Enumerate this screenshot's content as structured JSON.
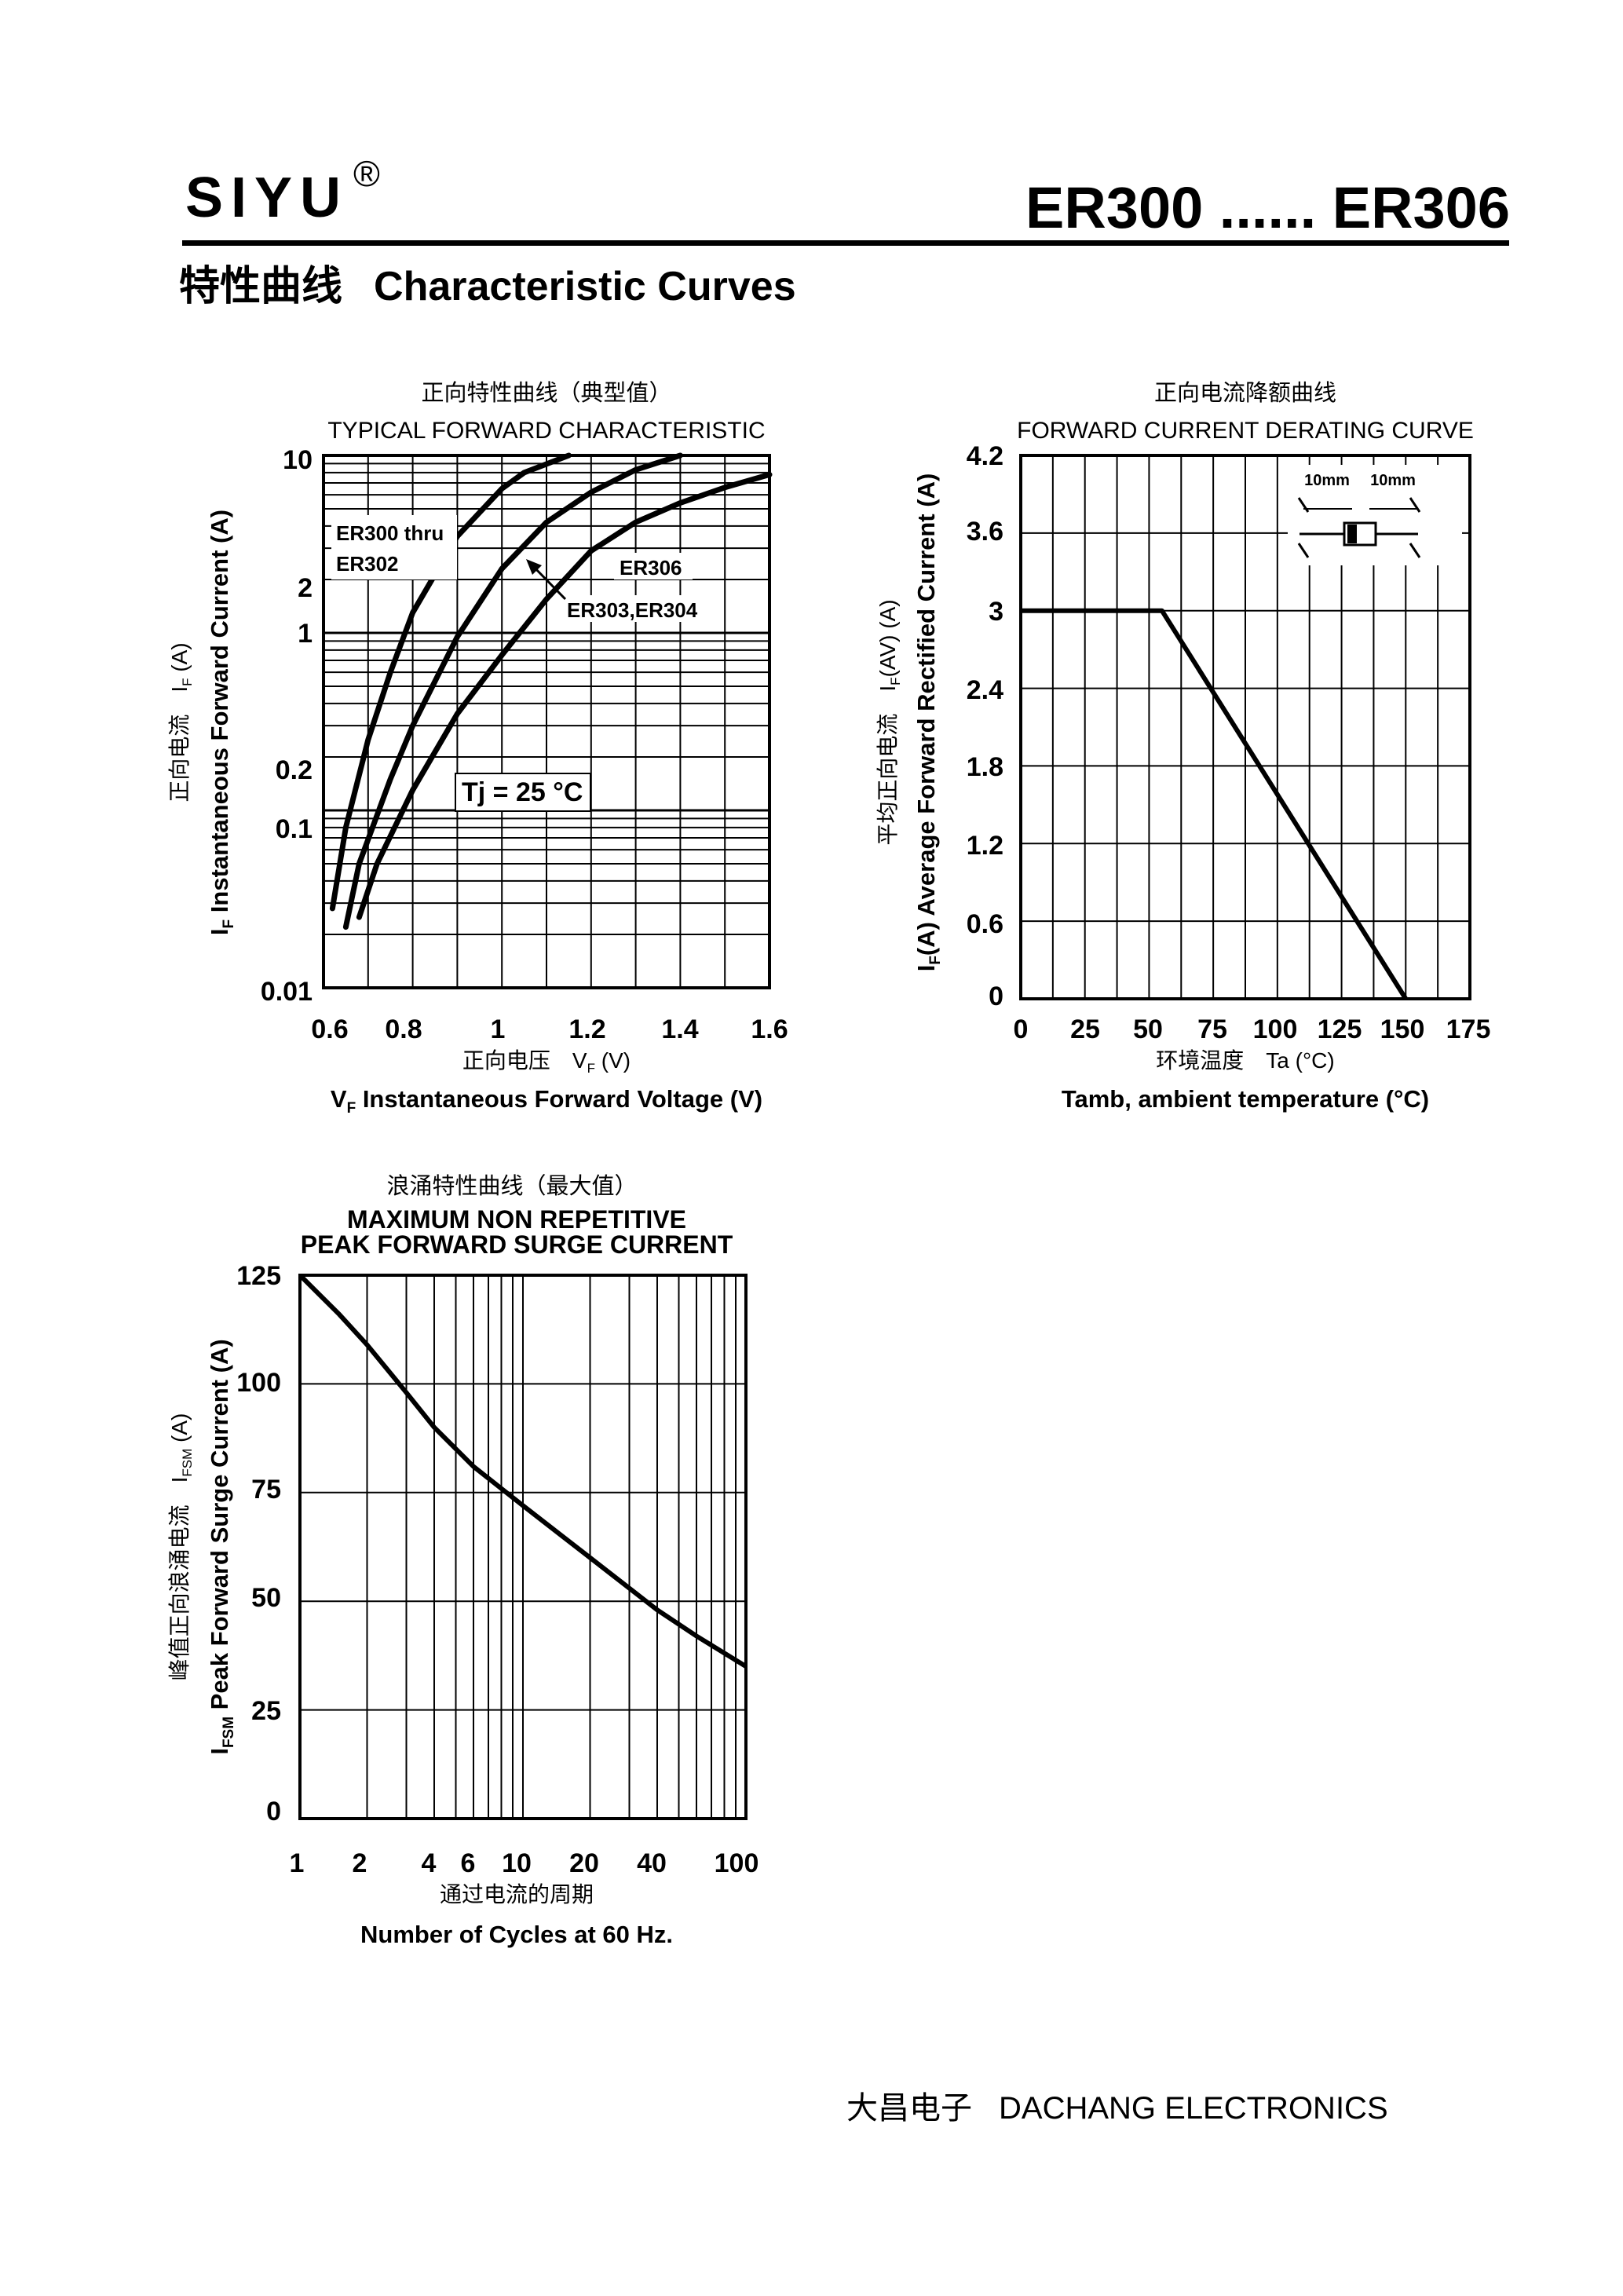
{
  "header": {
    "brand": "SIYU",
    "brand_mark": "®",
    "model_range": "ER300 ...... ER306",
    "section_title_cn": "特性曲线",
    "section_title_en": "Characteristic Curves"
  },
  "footer": {
    "company_cn": "大昌电子",
    "company_en": "DACHANG ELECTRONICS"
  },
  "chart_data": [
    {
      "id": "forward",
      "type": "line",
      "title_cn": "正向特性曲线（典型值）",
      "title": "TYPICAL FORWARD CHARACTERISTIC",
      "xlabel_cn": "正向电压　V_F (V)",
      "xlabel": "V_F Instantaneous Forward Voltage (V)",
      "ylabel_cn": "正向电流　I_F (A)",
      "ylabel": "I_F Instantaneous Forward Current (A)",
      "xscale": "linear",
      "yscale": "log",
      "xlim": [
        0.6,
        1.6
      ],
      "ylim": [
        0.01,
        10
      ],
      "xticks": [
        "0.6",
        "0.8",
        "1",
        "1.2",
        "1.4",
        "1.6"
      ],
      "yticks": [
        "0.01",
        "0.1",
        "0.2",
        "1",
        "2",
        "10"
      ],
      "grid": true,
      "annotation": "Tj = 25 °C",
      "series": [
        {
          "name": "ER300 thru ER302",
          "points": [
            [
              0.62,
              0.028
            ],
            [
              0.65,
              0.08
            ],
            [
              0.7,
              0.25
            ],
            [
              0.75,
              0.6
            ],
            [
              0.8,
              1.3
            ],
            [
              0.9,
              3.5
            ],
            [
              1.0,
              6.5
            ],
            [
              1.05,
              8.0
            ],
            [
              1.15,
              10.0
            ]
          ]
        },
        {
          "name": "ER303,ER304",
          "points": [
            [
              0.65,
              0.022
            ],
            [
              0.68,
              0.05
            ],
            [
              0.75,
              0.15
            ],
            [
              0.8,
              0.3
            ],
            [
              0.9,
              0.95
            ],
            [
              1.0,
              2.3
            ],
            [
              1.1,
              4.2
            ],
            [
              1.2,
              6.2
            ],
            [
              1.3,
              8.3
            ],
            [
              1.4,
              10.0
            ]
          ]
        },
        {
          "name": "ER306",
          "points": [
            [
              0.68,
              0.025
            ],
            [
              0.72,
              0.05
            ],
            [
              0.8,
              0.13
            ],
            [
              0.9,
              0.35
            ],
            [
              1.0,
              0.75
            ],
            [
              1.1,
              1.55
            ],
            [
              1.2,
              2.9
            ],
            [
              1.3,
              4.2
            ],
            [
              1.4,
              5.4
            ],
            [
              1.5,
              6.6
            ],
            [
              1.6,
              7.8
            ]
          ]
        }
      ]
    },
    {
      "id": "derating",
      "type": "line",
      "title_cn": "正向电流降额曲线",
      "title": "FORWARD CURRENT DERATING CURVE",
      "xlabel_cn": "环境温度　Ta (°C)",
      "xlabel": "Tamb, ambient temperature (°C)",
      "ylabel_cn": "平均正向电流　I_F(AV) (A)",
      "ylabel": "I_F(A) Average Forward Rectified Current (A)",
      "xscale": "linear",
      "yscale": "linear",
      "xlim": [
        0,
        175
      ],
      "ylim": [
        0,
        4.2
      ],
      "xticks": [
        "0",
        "25",
        "50",
        "75",
        "100",
        "125",
        "150",
        "175"
      ],
      "yticks": [
        "0",
        "0.6",
        "1.2",
        "1.8",
        "2.4",
        "3",
        "3.6",
        "4.2"
      ],
      "grid": true,
      "inset_labels": [
        "10mm",
        "10mm"
      ],
      "series": [
        {
          "name": "",
          "points": [
            [
              0,
              3.0
            ],
            [
              55,
              3.0
            ],
            [
              150,
              0
            ]
          ]
        }
      ]
    },
    {
      "id": "surge",
      "type": "line",
      "title_cn": "浪涌特性曲线（最大值）",
      "title": [
        "MAXIMUM NON REPETITIVE",
        "PEAK FORWARD SURGE CURRENT"
      ],
      "xlabel_cn": "通过电流的周期",
      "xlabel": "Number  of  Cycles at 60 Hz.",
      "ylabel_cn": "峰值正向浪涌电流　I_FSM (A)",
      "ylabel": "I_FSM Peak Forward Surge Current (A)",
      "xscale": "log",
      "yscale": "linear",
      "xlim": [
        1,
        100
      ],
      "ylim": [
        0,
        125
      ],
      "xticks": [
        "1",
        "2",
        "4",
        "6",
        "10",
        "20",
        "40",
        "100"
      ],
      "yticks": [
        "0",
        "25",
        "50",
        "75",
        "100",
        "125"
      ],
      "grid": true,
      "series": [
        {
          "name": "",
          "points": [
            [
              1,
              125
            ],
            [
              1.5,
              116
            ],
            [
              2,
              109
            ],
            [
              3,
              98
            ],
            [
              4,
              90
            ],
            [
              6,
              81
            ],
            [
              10,
              72
            ],
            [
              15,
              65
            ],
            [
              20,
              60
            ],
            [
              30,
              53
            ],
            [
              40,
              48
            ],
            [
              60,
              42
            ],
            [
              100,
              35
            ]
          ]
        }
      ]
    }
  ]
}
